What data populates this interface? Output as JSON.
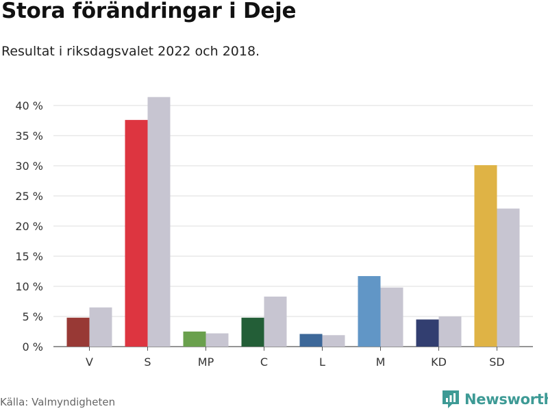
{
  "header": {
    "title": "Stora förändringar i Deje",
    "subtitle": "Resultat i riksdagsvalet 2022 och 2018."
  },
  "footer": {
    "source": "Källa: Valmyndigheten",
    "brand": "Newsworthy"
  },
  "chart_data": {
    "type": "bar",
    "categories": [
      "V",
      "S",
      "MP",
      "C",
      "L",
      "M",
      "KD",
      "SD"
    ],
    "series": [
      {
        "values": [
          4.8,
          37.6,
          2.5,
          4.8,
          2.1,
          11.7,
          4.5,
          30.1
        ],
        "colors": [
          "#983935",
          "#dd3540",
          "#6aa04d",
          "#235e37",
          "#3d6899",
          "#6196c6",
          "#323e70",
          "#dfb345"
        ]
      },
      {
        "values": [
          6.5,
          41.4,
          2.2,
          8.3,
          1.9,
          9.8,
          5.0,
          22.9
        ],
        "color": "#c7c5d1"
      }
    ],
    "y_ticks": [
      "0 %",
      "5 %",
      "10 %",
      "15 %",
      "20 %",
      "25 %",
      "30 %",
      "35 %",
      "40 %"
    ],
    "ylim": [
      0,
      40
    ],
    "grid": true,
    "legend": "none"
  }
}
